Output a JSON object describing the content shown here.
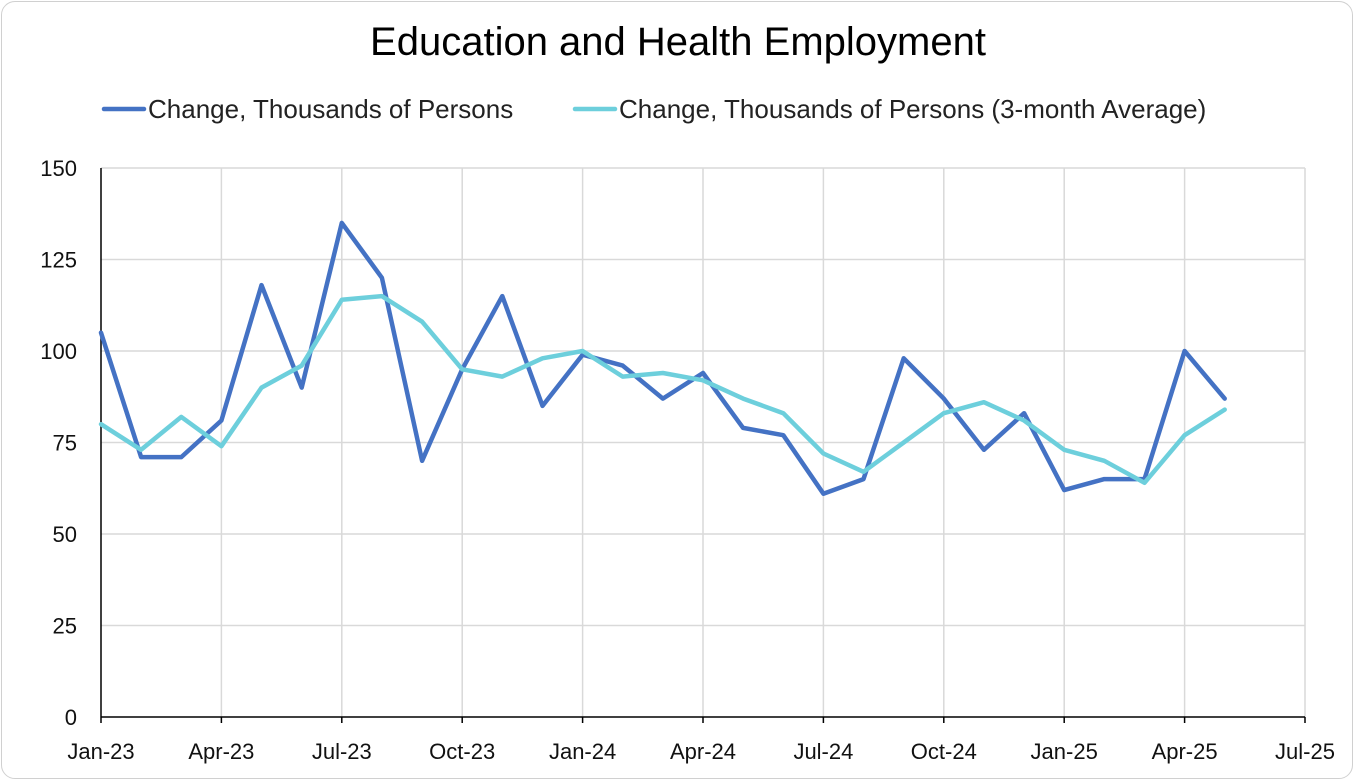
{
  "chart_data": {
    "type": "line",
    "title": "Education and Health Employment",
    "xlabel": "",
    "ylabel": "",
    "ylim": [
      0,
      150
    ],
    "yticks": [
      0,
      25,
      50,
      75,
      100,
      125,
      150
    ],
    "x_tick_labels": [
      "Jan-23",
      "Apr-23",
      "Jul-23",
      "Oct-23",
      "Jan-24",
      "Apr-24",
      "Jul-24",
      "Oct-24",
      "Jan-25",
      "Apr-25",
      "Jul-25"
    ],
    "x": [
      "2023-01",
      "2023-02",
      "2023-03",
      "2023-04",
      "2023-05",
      "2023-06",
      "2023-07",
      "2023-08",
      "2023-09",
      "2023-10",
      "2023-11",
      "2023-12",
      "2024-01",
      "2024-02",
      "2024-03",
      "2024-04",
      "2024-05",
      "2024-06",
      "2024-07",
      "2024-08",
      "2024-09",
      "2024-10",
      "2024-11",
      "2024-12",
      "2025-01",
      "2025-02",
      "2025-03",
      "2025-04",
      "2025-05"
    ],
    "grid": true,
    "legend_position": "top",
    "series": [
      {
        "name": "Change, Thousands of Persons",
        "color": "#4472c4",
        "values": [
          105,
          71,
          71,
          81,
          118,
          90,
          135,
          120,
          70,
          95,
          115,
          85,
          99,
          96,
          87,
          94,
          79,
          77,
          61,
          65,
          98,
          87,
          73,
          83,
          62,
          65,
          65,
          100,
          87
        ]
      },
      {
        "name": "Change, Thousands of Persons (3-month Average)",
        "color": "#6dcfdc",
        "values": [
          80,
          73,
          82,
          74,
          90,
          96,
          114,
          115,
          108,
          95,
          93,
          98,
          100,
          93,
          94,
          92,
          87,
          83,
          72,
          67,
          75,
          83,
          86,
          81,
          73,
          70,
          64,
          77,
          84
        ]
      }
    ]
  }
}
